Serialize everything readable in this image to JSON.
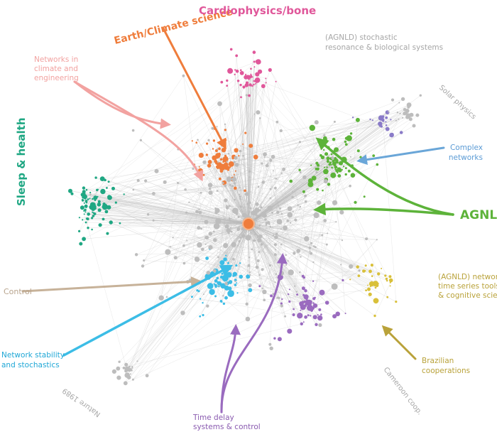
{
  "labels": {
    "earth_climate": "Earth/Climate science",
    "cardio": "Cardiophysics/bone",
    "stochastic": [
      "(AGNLD) stochastic",
      "resonance & biological systems"
    ],
    "networks_climate": [
      "Networks in",
      "climate and",
      "engineering"
    ],
    "solar": "Solar physics",
    "complex": [
      "Complex",
      "networks"
    ],
    "sleep": "Sleep & health",
    "agnld": "AGNLD",
    "control": "Control",
    "agnld_networks": [
      "(AGNLD) networks,",
      "time series tools,",
      "& cognitive science"
    ],
    "stability": [
      "Network stability",
      "and stochastics"
    ],
    "brazilian": [
      "Brazilian",
      "cooperations"
    ],
    "cameroon": "Cameroon coop.",
    "nature": "Nature 1989",
    "time_delay": [
      "Time delay",
      "systems & control"
    ]
  }
}
